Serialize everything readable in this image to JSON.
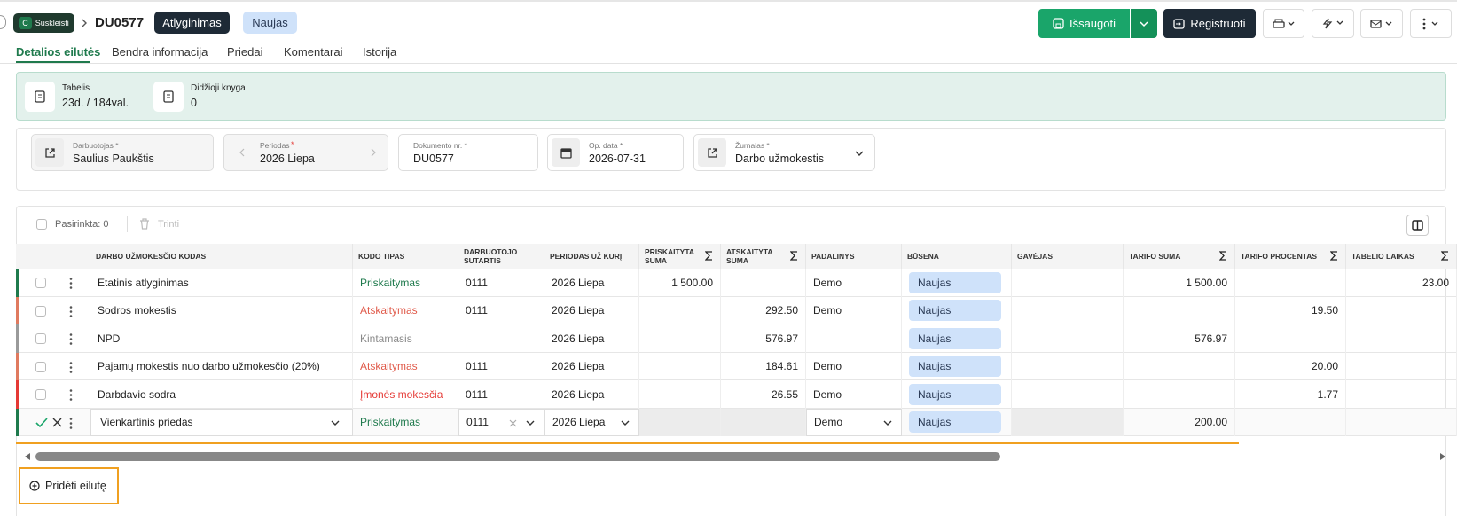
{
  "header": {
    "badge_letter": "C",
    "badge_text": "Suskleisti",
    "doc_number": "DU0577",
    "doc_type": "Atlyginimas",
    "status": "Naujas",
    "save": "Išsaugoti",
    "register": "Registruoti"
  },
  "tabs": [
    "Detalios eilutės",
    "Bendra informacija",
    "Priedai",
    "Komentarai",
    "Istorija"
  ],
  "summary": [
    {
      "label": "Tabelis",
      "value": "23d. / 184val."
    },
    {
      "label": "Didžioji knyga",
      "value": "0"
    }
  ],
  "fields": [
    {
      "label": "Darbuotojas *",
      "value": "Saulius Paukštis"
    },
    {
      "label": "Periodas",
      "required": "*",
      "value": "2026 Liepa"
    },
    {
      "label": "Dokumento nr. *",
      "value": "DU0577"
    },
    {
      "label": "Op. data *",
      "value": "2026-07-31"
    },
    {
      "label": "Žurnalas *",
      "value": "Darbo užmokestis"
    }
  ],
  "toolbar": {
    "selected": "Pasirinkta: 0",
    "delete": "Trinti"
  },
  "table": {
    "columns": [
      {
        "label": "DARBO UŽMOKESČIO KODAS"
      },
      {
        "label": "KODO TIPAS"
      },
      {
        "label": "DARBUOTOJO SUTARTIS"
      },
      {
        "label": "PERIODAS UŽ KURĮ"
      },
      {
        "label": "PRISKAITYTA SUMA",
        "sum": true
      },
      {
        "label": "ATSKAITYTA SUMA",
        "sum": true
      },
      {
        "label": "PADALINYS"
      },
      {
        "label": "BŪSENA"
      },
      {
        "label": "GAVĖJAS"
      },
      {
        "label": "TARIFO SUMA",
        "sum": true
      },
      {
        "label": "TARIFO PROCENTAS",
        "sum": true
      },
      {
        "label": "TABELIO LAIKAS",
        "sum": true
      }
    ],
    "rows": [
      {
        "color": "#1f7a4d",
        "type_color": "#1f7a4d",
        "cells": [
          "Etatinis atlyginimas",
          "Priskaitymas",
          "0111",
          "2026 Liepa",
          "1 500.00",
          null,
          "Demo",
          "Naujas",
          null,
          "1 500.00",
          null,
          "23.00"
        ]
      },
      {
        "color": "#e07a5f",
        "type_color": "#e05a4a",
        "cells": [
          "Sodros mokestis",
          "Atskaitymas",
          "0111",
          "2026 Liepa",
          null,
          "292.50",
          "Demo",
          "Naujas",
          null,
          null,
          "19.50",
          null
        ]
      },
      {
        "color": "#9a9a9a",
        "type_color": "#8a8a8a",
        "cells": [
          "NPD",
          "Kintamasis",
          null,
          "2026 Liepa",
          null,
          "576.97",
          null,
          "Naujas",
          null,
          "576.97",
          null,
          null
        ]
      },
      {
        "color": "#e07a5f",
        "type_color": "#e05a4a",
        "cells": [
          "Pajamų mokestis nuo darbo užmokesčio (20%)",
          "Atskaitymas",
          "0111",
          "2026 Liepa",
          null,
          "184.61",
          "Demo",
          "Naujas",
          null,
          null,
          "20.00",
          null
        ]
      },
      {
        "color": "#e53935",
        "type_color": "#e53935",
        "cells": [
          "Darbdavio sodra",
          "Įmonės mokesčia",
          "0111",
          "2026 Liepa",
          null,
          "26.55",
          "Demo",
          "Naujas",
          null,
          null,
          "1.77",
          null
        ]
      }
    ],
    "new_row": {
      "color": "#1f7a4d",
      "type_color": "#1f7a4d",
      "cells": [
        "Vienkartinis priedas",
        "Priskaitymas",
        "0111",
        "2026 Liepa",
        null,
        null,
        "Demo",
        "Naujas",
        null,
        "200.00",
        null,
        null
      ]
    }
  },
  "add_row": "Pridėti eilutę"
}
